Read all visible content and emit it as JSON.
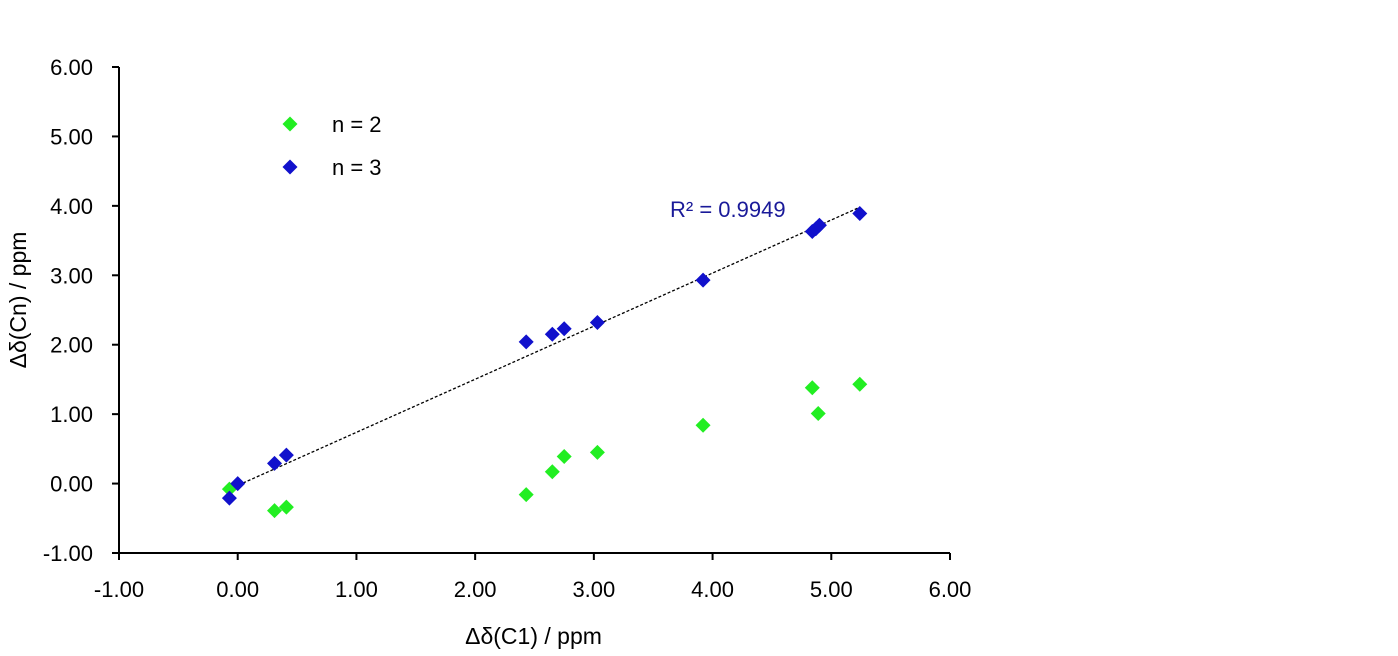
{
  "chart_data": {
    "type": "scatter",
    "xlabel": "Δδ(C1) / ppm",
    "ylabel": "Δδ(Cn) / ppm",
    "xlim": [
      -1.0,
      6.0
    ],
    "ylim": [
      -1.0,
      6.0
    ],
    "xticks": [
      "-1.00",
      "0.00",
      "1.00",
      "2.00",
      "3.00",
      "4.00",
      "5.00",
      "6.00"
    ],
    "yticks": [
      "-1.00",
      "0.00",
      "1.00",
      "2.00",
      "3.00",
      "4.00",
      "5.00",
      "6.00"
    ],
    "grid": false,
    "legend_position": "top-left",
    "series": [
      {
        "name": "n = 2",
        "color": "#22ee22",
        "marker": "diamond",
        "x": [
          -0.07,
          0.31,
          0.41,
          2.43,
          2.65,
          2.75,
          3.03,
          3.92,
          4.84,
          4.89,
          5.24
        ],
        "y": [
          -0.08,
          -0.39,
          -0.34,
          -0.16,
          0.17,
          0.39,
          0.45,
          0.84,
          1.38,
          1.01,
          1.43
        ]
      },
      {
        "name": "n = 3",
        "color": "#1111cc",
        "marker": "diamond",
        "x": [
          -0.07,
          0.0,
          0.31,
          0.41,
          2.43,
          2.65,
          2.75,
          3.03,
          3.92,
          4.84,
          4.87,
          4.9,
          5.24
        ],
        "y": [
          -0.21,
          0.0,
          0.29,
          0.41,
          2.04,
          2.15,
          2.23,
          2.32,
          2.93,
          3.63,
          3.67,
          3.72,
          3.89
        ]
      }
    ],
    "trendline": {
      "series": "n = 3",
      "style": "dashed",
      "color": "#000000",
      "x": [
        -0.07,
        5.24
      ],
      "y": [
        -0.08,
        3.98
      ],
      "annotation": "R² = 0.9949",
      "annotation_color": "#1a1a99"
    }
  }
}
